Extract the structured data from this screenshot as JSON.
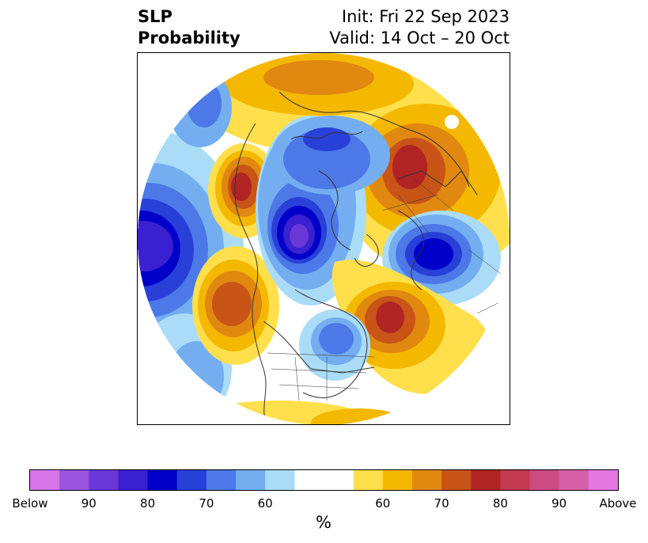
{
  "title": {
    "variable": "SLP",
    "metric": "Probability",
    "init": "Init: Fri 22 Sep 2023",
    "valid": "Valid: 14 Oct – 20 Oct"
  },
  "colorbar": {
    "unit": "%",
    "colors": [
      "#d674e8",
      "#9a54e0",
      "#6a38d6",
      "#3a20d0",
      "#0000c8",
      "#2840d8",
      "#4c78e8",
      "#74aef0",
      "#aadcf8",
      "#ffffff",
      "#ffffff",
      "#ffe04c",
      "#f4b800",
      "#e08810",
      "#c85418",
      "#b02424",
      "#c43850",
      "#cc4c82",
      "#d860a8",
      "#e478e0"
    ],
    "tick_labels": [
      "Below",
      "90",
      "80",
      "70",
      "60",
      "60",
      "70",
      "80",
      "90",
      "Above"
    ]
  },
  "map": {
    "projection": "north-polar-stereographic",
    "region": "Northern Hemisphere",
    "features": [
      {
        "name": "blue-anomaly-arctic-canada",
        "category": "below",
        "peak": "90"
      },
      {
        "name": "blue-anomaly-north-pacific",
        "category": "below",
        "peak": "80"
      },
      {
        "name": "blue-anomaly-north-atlantic",
        "category": "below",
        "peak": "80"
      },
      {
        "name": "blue-anomaly-siberia-arctic",
        "category": "below",
        "peak": "70"
      },
      {
        "name": "blue-anomaly-eastern-us",
        "category": "below",
        "peak": "70"
      },
      {
        "name": "red-anomaly-eastern-europe",
        "category": "above",
        "peak": "80"
      },
      {
        "name": "red-anomaly-east-asia",
        "category": "above",
        "peak": "80"
      },
      {
        "name": "red-anomaly-western-europe",
        "category": "above",
        "peak": "80"
      },
      {
        "name": "orange-anomaly-northeast-pacific",
        "category": "above",
        "peak": "70"
      },
      {
        "name": "orange-anomaly-arctic-russia",
        "category": "above",
        "peak": "70"
      }
    ]
  }
}
